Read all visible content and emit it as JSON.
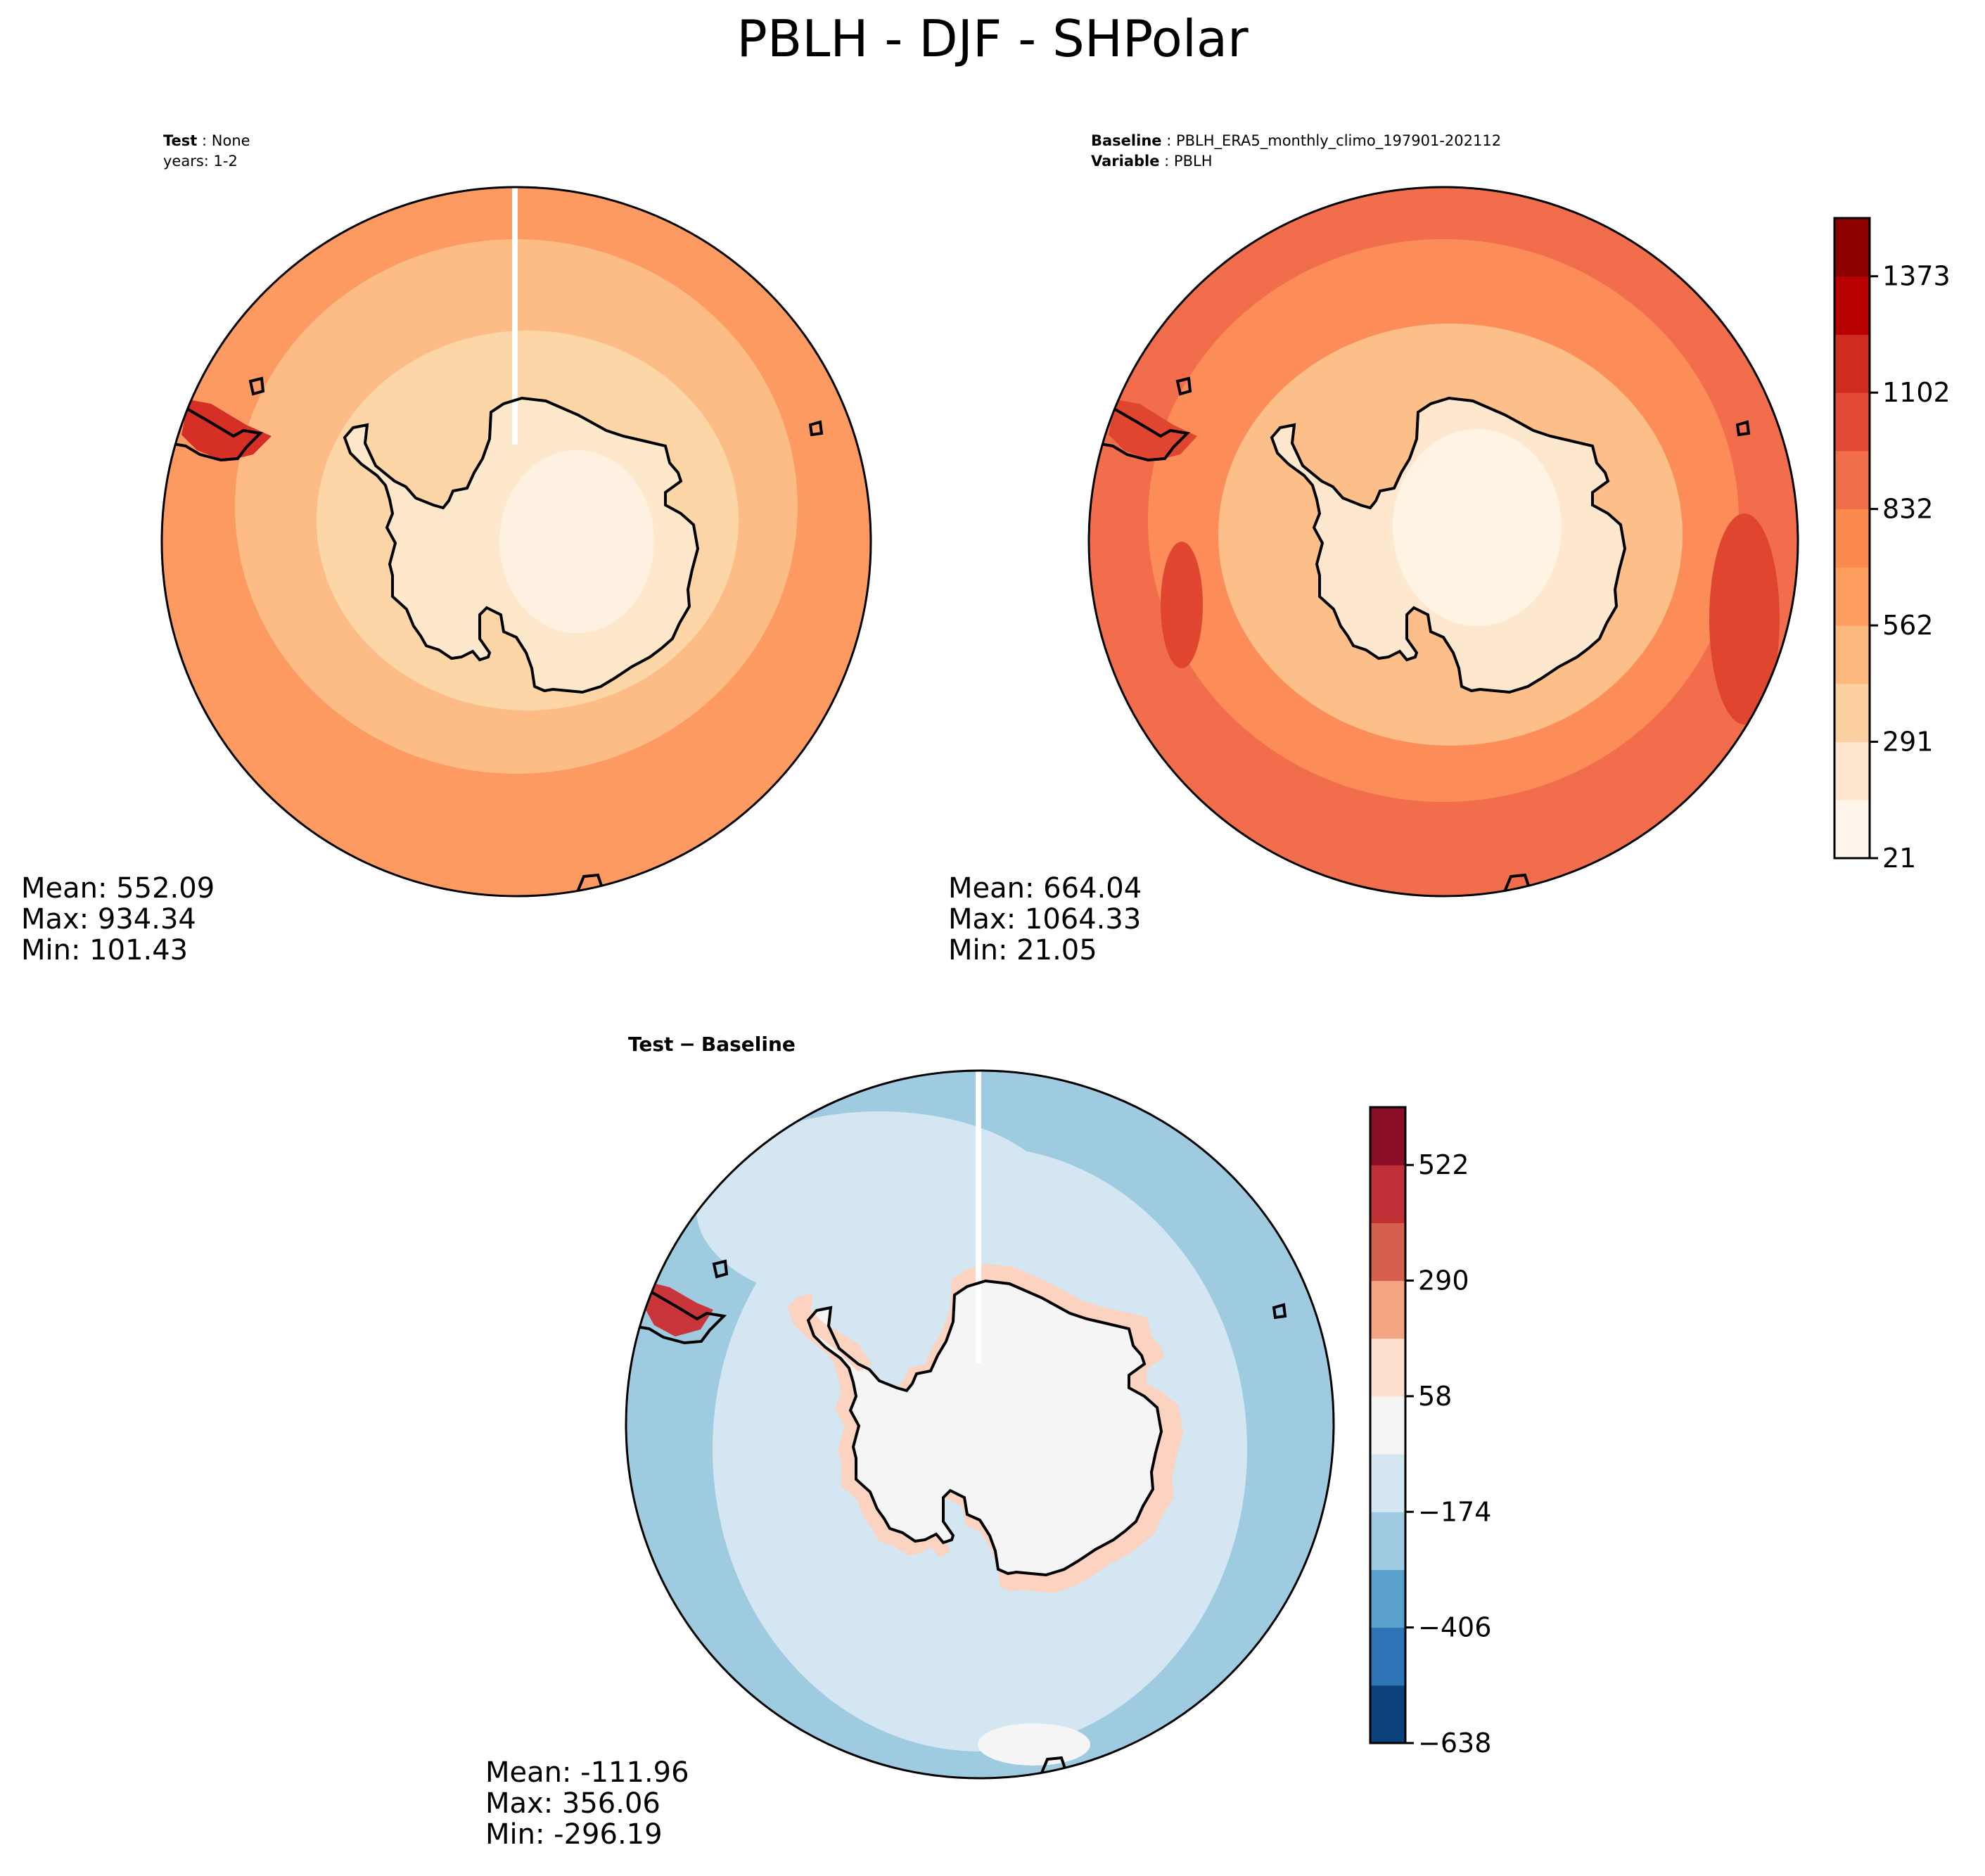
{
  "figure": {
    "title": "PBLH - DJF - SHPolar"
  },
  "panels": {
    "test": {
      "label_key": "Test",
      "label_value": "None",
      "line2": "years: 1-2",
      "stats": {
        "mean": "Mean: 552.09",
        "max": "Max: 934.34",
        "min": "Min: 101.43"
      }
    },
    "baseline": {
      "label_key": "Baseline",
      "label_value": "PBLH_ERA5_monthly_climo_197901-202112",
      "label2_key": "Variable",
      "label2_value": "PBLH",
      "stats": {
        "mean": "Mean: 664.04",
        "max": "Max: 1064.33",
        "min": "Min: 21.05"
      }
    },
    "diff": {
      "title_a": "Test",
      "title_minus": "−",
      "title_b": "Baseline",
      "stats": {
        "mean": "Mean: -111.96",
        "max": "Max: 356.06",
        "min": "Min: -296.19"
      }
    }
  },
  "colorbars": {
    "main": {
      "ticks": [
        "21",
        "291",
        "562",
        "832",
        "1102",
        "1373"
      ],
      "colors": [
        "#fff5eb",
        "#fee6ce",
        "#fdd0a2",
        "#fdb97d",
        "#fd9e5f",
        "#fc8a4c",
        "#f16e4a",
        "#e34b38",
        "#d02c20",
        "#b80000",
        "#8c0000"
      ]
    },
    "diff": {
      "ticks": [
        "−638",
        "−406",
        "−174",
        "58",
        "290",
        "522"
      ],
      "colors": [
        "#0c427c",
        "#2c74b5",
        "#5aa0cc",
        "#9ecae1",
        "#d3e6f2",
        "#f5f5f5",
        "#fde0d0",
        "#f4a582",
        "#d6604d",
        "#bf2f35",
        "#8a0c26"
      ]
    }
  },
  "map_colors": {
    "test": {
      "ocean": "#fc9a62",
      "mid": "#fdbb85",
      "inner": "#fdd6a8",
      "land": "#fee8cc",
      "core": "#fff1e2",
      "hot": "#d62f26"
    },
    "baseline": {
      "ocean": "#f26d4b",
      "mid": "#fc8d59",
      "inner": "#fdbf8a",
      "land": "#fee7cf",
      "core": "#fff3e4",
      "hot": "#e04530"
    },
    "diff": {
      "ocean": "#9fcbe1",
      "mid": "#d3e6f2",
      "land": "#f5f5f5",
      "warm": "#fbd3c0",
      "hot": "#c8353b"
    }
  }
}
